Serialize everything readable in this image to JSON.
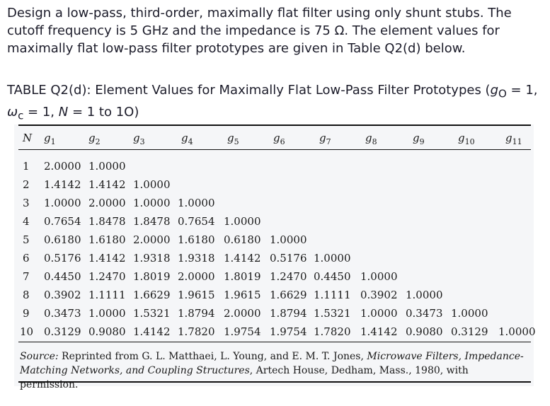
{
  "question": {
    "text": "Design a low-pass, third-order, maximally flat filter using only shunt stubs. The cutoff frequency is 5 GHz and the impedance is 75 Ω. The element values for maximally flat low-pass filter prototypes are given in Table Q2(d) below."
  },
  "table_caption": {
    "text_before": "TABLE Q2(d): Element Values for Maximally Flat Low-Pass Filter Prototypes (",
    "g0_symbol": "g",
    "g0_sub": "O",
    "g0_value": " = 1,",
    "wc_symbol": "ω",
    "wc_sub": "c",
    "wc_value": " = 1, ",
    "n_symbol": "N",
    "n_range": " = 1 to 1O)"
  },
  "table": {
    "header": [
      "N",
      "g1",
      "g2",
      "g3",
      "g4",
      "g5",
      "g6",
      "g7",
      "g8",
      "g9",
      "g10",
      "g11"
    ],
    "rows": [
      [
        "1",
        "2.0000",
        "1.0000"
      ],
      [
        "2",
        "1.4142",
        "1.4142",
        "1.0000"
      ],
      [
        "3",
        "1.0000",
        "2.0000",
        "1.0000",
        "1.0000"
      ],
      [
        "4",
        "0.7654",
        "1.8478",
        "1.8478",
        "0.7654",
        "1.0000"
      ],
      [
        "5",
        "0.6180",
        "1.6180",
        "2.0000",
        "1.6180",
        "0.6180",
        "1.0000"
      ],
      [
        "6",
        "0.5176",
        "1.4142",
        "1.9318",
        "1.9318",
        "1.4142",
        "0.5176",
        "1.0000"
      ],
      [
        "7",
        "0.4450",
        "1.2470",
        "1.8019",
        "2.0000",
        "1.8019",
        "1.2470",
        "0.4450",
        "1.0000"
      ],
      [
        "8",
        "0.3902",
        "1.1111",
        "1.6629",
        "1.9615",
        "1.9615",
        "1.6629",
        "1.1111",
        "0.3902",
        "1.0000"
      ],
      [
        "9",
        "0.3473",
        "1.0000",
        "1.5321",
        "1.8794",
        "2.0000",
        "1.8794",
        "1.5321",
        "1.0000",
        "0.3473",
        "1.0000"
      ],
      [
        "10",
        "0.3129",
        "0.9080",
        "1.4142",
        "1.7820",
        "1.9754",
        "1.9754",
        "1.7820",
        "1.4142",
        "0.9080",
        "0.3129",
        "1.0000"
      ]
    ]
  },
  "source": {
    "label": "Source:",
    "text1": " Reprinted from G. L. Matthaei, L. Young, and E. M. T. Jones, ",
    "book_title": "Microwave Filters, Impedance-Matching Networks, and Coupling Structures",
    "text2": ", Artech House, Dedham, Mass., 1980, with permission."
  }
}
